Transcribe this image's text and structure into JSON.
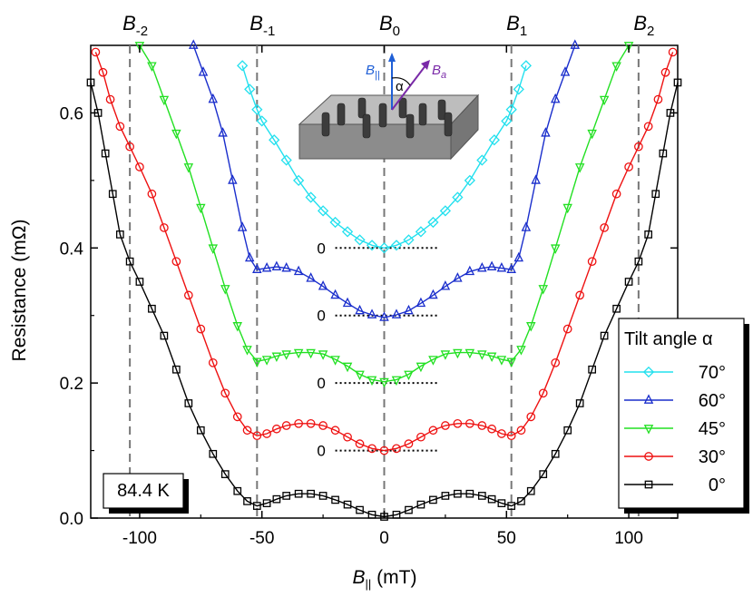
{
  "chart_data": {
    "type": "scatter",
    "xlabel_main": "B",
    "xlabel_sub": "||",
    "xlabel_unit": " (mT)",
    "ylabel": "Resistance (mΩ)",
    "xlim": [
      -120,
      120
    ],
    "ylim": [
      0.0,
      0.7
    ],
    "x_ticks": [
      -100,
      -50,
      0,
      50,
      100
    ],
    "y_ticks": [
      0.0,
      0.2,
      0.4,
      0.6
    ],
    "x_tick_labels": [
      "-100",
      "-50",
      "0",
      "50",
      "100"
    ],
    "y_tick_labels": [
      "0.0",
      "0.2",
      "0.4",
      "0.6"
    ],
    "top_labels": [
      {
        "main": "B",
        "sub": "-2",
        "x": -104
      },
      {
        "main": "B",
        "sub": "-1",
        "x": -52
      },
      {
        "main": "B",
        "sub": "0",
        "x": 0
      },
      {
        "main": "B",
        "sub": "1",
        "x": 52
      },
      {
        "main": "B",
        "sub": "2",
        "x": 104
      }
    ],
    "temperature_label": "84.4 K",
    "legend_title": "Tilt angle α",
    "zero_labels": [
      {
        "text": "0",
        "y": 0.4
      },
      {
        "text": "0",
        "y": 0.3
      },
      {
        "text": "0",
        "y": 0.2
      },
      {
        "text": "0",
        "y": 0.1
      }
    ],
    "inset": {
      "b_parallel_main": "B",
      "b_parallel_sub": "||",
      "b_applied_main": "B",
      "b_applied_sub": "a",
      "angle_label": "α"
    },
    "series": [
      {
        "name": "70°",
        "color": "#22e0ee",
        "marker": "diamond",
        "offset": 0.4,
        "points": [
          [
            -58,
            0.67
          ],
          [
            -55,
            0.635
          ],
          [
            -52,
            0.605
          ],
          [
            -50,
            0.588
          ],
          [
            -45,
            0.56
          ],
          [
            -40,
            0.53
          ],
          [
            -35,
            0.5
          ],
          [
            -30,
            0.475
          ],
          [
            -25,
            0.455
          ],
          [
            -20,
            0.438
          ],
          [
            -15,
            0.424
          ],
          [
            -10,
            0.412
          ],
          [
            -5,
            0.404
          ],
          [
            0,
            0.4
          ],
          [
            5,
            0.404
          ],
          [
            10,
            0.412
          ],
          [
            15,
            0.424
          ],
          [
            20,
            0.438
          ],
          [
            25,
            0.455
          ],
          [
            30,
            0.475
          ],
          [
            35,
            0.5
          ],
          [
            40,
            0.53
          ],
          [
            45,
            0.56
          ],
          [
            50,
            0.588
          ],
          [
            52,
            0.605
          ],
          [
            55,
            0.635
          ],
          [
            58,
            0.67
          ]
        ]
      },
      {
        "name": "60°",
        "color": "#1a2ecc",
        "marker": "triangle-up",
        "offset": 0.3,
        "points": [
          [
            -78,
            0.7
          ],
          [
            -74,
            0.66
          ],
          [
            -70,
            0.62
          ],
          [
            -66,
            0.57
          ],
          [
            -62,
            0.5
          ],
          [
            -58,
            0.43
          ],
          [
            -55,
            0.385
          ],
          [
            -52,
            0.368
          ],
          [
            -48,
            0.37
          ],
          [
            -44,
            0.372
          ],
          [
            -40,
            0.37
          ],
          [
            -35,
            0.365
          ],
          [
            -30,
            0.355
          ],
          [
            -25,
            0.343
          ],
          [
            -20,
            0.33
          ],
          [
            -15,
            0.318
          ],
          [
            -10,
            0.307
          ],
          [
            -5,
            0.301
          ],
          [
            0,
            0.297
          ],
          [
            5,
            0.301
          ],
          [
            10,
            0.307
          ],
          [
            15,
            0.318
          ],
          [
            20,
            0.33
          ],
          [
            25,
            0.343
          ],
          [
            30,
            0.355
          ],
          [
            35,
            0.365
          ],
          [
            40,
            0.37
          ],
          [
            44,
            0.372
          ],
          [
            48,
            0.37
          ],
          [
            52,
            0.368
          ],
          [
            55,
            0.385
          ],
          [
            58,
            0.43
          ],
          [
            62,
            0.5
          ],
          [
            66,
            0.57
          ],
          [
            70,
            0.62
          ],
          [
            74,
            0.66
          ],
          [
            78,
            0.7
          ]
        ]
      },
      {
        "name": "45°",
        "color": "#22e022",
        "marker": "triangle-down",
        "offset": 0.2,
        "points": [
          [
            -100,
            0.7
          ],
          [
            -95,
            0.67
          ],
          [
            -90,
            0.62
          ],
          [
            -85,
            0.57
          ],
          [
            -80,
            0.52
          ],
          [
            -75,
            0.46
          ],
          [
            -70,
            0.4
          ],
          [
            -65,
            0.34
          ],
          [
            -60,
            0.285
          ],
          [
            -56,
            0.25
          ],
          [
            -52,
            0.232
          ],
          [
            -48,
            0.235
          ],
          [
            -44,
            0.24
          ],
          [
            -40,
            0.243
          ],
          [
            -35,
            0.245
          ],
          [
            -30,
            0.245
          ],
          [
            -25,
            0.243
          ],
          [
            -20,
            0.235
          ],
          [
            -15,
            0.225
          ],
          [
            -10,
            0.213
          ],
          [
            -5,
            0.205
          ],
          [
            0,
            0.202
          ],
          [
            5,
            0.205
          ],
          [
            10,
            0.213
          ],
          [
            15,
            0.225
          ],
          [
            20,
            0.235
          ],
          [
            25,
            0.243
          ],
          [
            30,
            0.245
          ],
          [
            35,
            0.245
          ],
          [
            40,
            0.243
          ],
          [
            44,
            0.24
          ],
          [
            48,
            0.235
          ],
          [
            52,
            0.232
          ],
          [
            56,
            0.25
          ],
          [
            60,
            0.285
          ],
          [
            65,
            0.34
          ],
          [
            70,
            0.4
          ],
          [
            75,
            0.46
          ],
          [
            80,
            0.52
          ],
          [
            85,
            0.57
          ],
          [
            90,
            0.62
          ],
          [
            95,
            0.67
          ],
          [
            100,
            0.7
          ]
        ]
      },
      {
        "name": "30°",
        "color": "#ee1111",
        "marker": "circle",
        "offset": 0.1,
        "points": [
          [
            -118,
            0.69
          ],
          [
            -115,
            0.66
          ],
          [
            -112,
            0.62
          ],
          [
            -108,
            0.58
          ],
          [
            -104,
            0.55
          ],
          [
            -100,
            0.52
          ],
          [
            -95,
            0.48
          ],
          [
            -90,
            0.43
          ],
          [
            -85,
            0.38
          ],
          [
            -80,
            0.33
          ],
          [
            -75,
            0.28
          ],
          [
            -70,
            0.23
          ],
          [
            -65,
            0.185
          ],
          [
            -60,
            0.15
          ],
          [
            -56,
            0.13
          ],
          [
            -52,
            0.122
          ],
          [
            -48,
            0.125
          ],
          [
            -44,
            0.132
          ],
          [
            -40,
            0.137
          ],
          [
            -35,
            0.14
          ],
          [
            -30,
            0.14
          ],
          [
            -25,
            0.137
          ],
          [
            -20,
            0.13
          ],
          [
            -15,
            0.12
          ],
          [
            -10,
            0.11
          ],
          [
            -5,
            0.103
          ],
          [
            0,
            0.1
          ],
          [
            5,
            0.103
          ],
          [
            10,
            0.11
          ],
          [
            15,
            0.12
          ],
          [
            20,
            0.13
          ],
          [
            25,
            0.137
          ],
          [
            30,
            0.14
          ],
          [
            35,
            0.14
          ],
          [
            40,
            0.137
          ],
          [
            44,
            0.132
          ],
          [
            48,
            0.125
          ],
          [
            52,
            0.122
          ],
          [
            56,
            0.13
          ],
          [
            60,
            0.15
          ],
          [
            65,
            0.185
          ],
          [
            70,
            0.23
          ],
          [
            75,
            0.28
          ],
          [
            80,
            0.33
          ],
          [
            85,
            0.38
          ],
          [
            90,
            0.43
          ],
          [
            95,
            0.48
          ],
          [
            100,
            0.52
          ],
          [
            104,
            0.55
          ],
          [
            108,
            0.58
          ],
          [
            112,
            0.62
          ],
          [
            115,
            0.66
          ],
          [
            118,
            0.69
          ]
        ]
      },
      {
        "name": "0°",
        "color": "#000000",
        "marker": "square",
        "offset": 0.0,
        "points": [
          [
            -120,
            0.645
          ],
          [
            -117,
            0.6
          ],
          [
            -114,
            0.54
          ],
          [
            -111,
            0.48
          ],
          [
            -108,
            0.42
          ],
          [
            -104,
            0.38
          ],
          [
            -100,
            0.35
          ],
          [
            -95,
            0.31
          ],
          [
            -90,
            0.27
          ],
          [
            -85,
            0.22
          ],
          [
            -80,
            0.17
          ],
          [
            -75,
            0.13
          ],
          [
            -70,
            0.095
          ],
          [
            -65,
            0.065
          ],
          [
            -60,
            0.04
          ],
          [
            -56,
            0.025
          ],
          [
            -52,
            0.018
          ],
          [
            -48,
            0.022
          ],
          [
            -44,
            0.028
          ],
          [
            -40,
            0.033
          ],
          [
            -35,
            0.036
          ],
          [
            -30,
            0.036
          ],
          [
            -25,
            0.033
          ],
          [
            -20,
            0.027
          ],
          [
            -15,
            0.02
          ],
          [
            -10,
            0.012
          ],
          [
            -5,
            0.005
          ],
          [
            0,
            0.002
          ],
          [
            5,
            0.005
          ],
          [
            10,
            0.012
          ],
          [
            15,
            0.02
          ],
          [
            20,
            0.027
          ],
          [
            25,
            0.033
          ],
          [
            30,
            0.036
          ],
          [
            35,
            0.036
          ],
          [
            40,
            0.033
          ],
          [
            44,
            0.028
          ],
          [
            48,
            0.022
          ],
          [
            52,
            0.018
          ],
          [
            56,
            0.025
          ],
          [
            60,
            0.04
          ],
          [
            65,
            0.065
          ],
          [
            70,
            0.095
          ],
          [
            75,
            0.13
          ],
          [
            80,
            0.17
          ],
          [
            85,
            0.22
          ],
          [
            90,
            0.27
          ],
          [
            95,
            0.31
          ],
          [
            100,
            0.35
          ],
          [
            104,
            0.38
          ],
          [
            108,
            0.42
          ],
          [
            111,
            0.48
          ],
          [
            114,
            0.54
          ],
          [
            117,
            0.6
          ],
          [
            120,
            0.645
          ]
        ]
      }
    ]
  }
}
